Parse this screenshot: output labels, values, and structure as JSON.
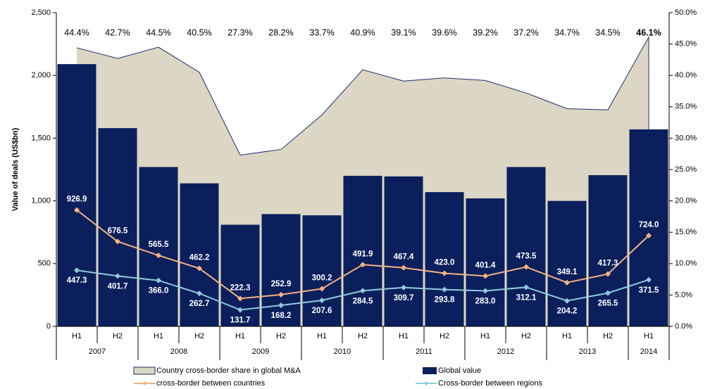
{
  "chart_data": {
    "type": "combo",
    "y_label": "Value of deals (US$bn)",
    "categories": [
      "H1",
      "H2",
      "H1",
      "H2",
      "H1",
      "H2",
      "H1",
      "H2",
      "H1",
      "H2",
      "H1",
      "H2",
      "H1",
      "H2",
      "H1"
    ],
    "groups": [
      {
        "label": "2007",
        "count": 2
      },
      {
        "label": "2008",
        "count": 2
      },
      {
        "label": "2009",
        "count": 2
      },
      {
        "label": "2010",
        "count": 2
      },
      {
        "label": "2011",
        "count": 2
      },
      {
        "label": "2012",
        "count": 2
      },
      {
        "label": "2013",
        "count": 2
      },
      {
        "label": "2014",
        "count": 1
      }
    ],
    "ylim": [
      0,
      2500
    ],
    "yticks": [
      0,
      500,
      {
        "value": 1000,
        "label": "1,000"
      },
      {
        "value": 1500,
        "label": "1,500"
      },
      {
        "value": 2000,
        "label": "2,000"
      },
      {
        "value": 2500,
        "label": "2,500"
      }
    ],
    "y2lim": [
      0,
      50
    ],
    "y2ticks": [
      {
        "value": 0,
        "label": "0.0%"
      },
      {
        "value": 5,
        "label": "5.0%"
      },
      {
        "value": 10,
        "label": "10.0%"
      },
      {
        "value": 15,
        "label": "15.0%"
      },
      {
        "value": 20,
        "label": "20.0%"
      },
      {
        "value": 25,
        "label": "25.0%"
      },
      {
        "value": 30,
        "label": "30.0%"
      },
      {
        "value": 35,
        "label": "35.0%"
      },
      {
        "value": 40,
        "label": "40.0%"
      },
      {
        "value": 45,
        "label": "45.0%"
      },
      {
        "value": 50,
        "label": "50.0%"
      }
    ],
    "series": [
      {
        "name": "Country cross-border share in global M&A",
        "type": "area",
        "axis": "y2",
        "color": "#dcd6c5",
        "line_color": "#1f2d6b",
        "values": [
          44.4,
          42.7,
          44.5,
          40.5,
          27.3,
          28.2,
          33.7,
          40.9,
          39.1,
          39.6,
          39.2,
          37.2,
          34.7,
          34.5,
          46.1
        ],
        "value_labels": [
          "44.4%",
          "42.7%",
          "44.5%",
          "40.5%",
          "27.3%",
          "28.2%",
          "33.7%",
          "40.9%",
          "39.1%",
          "39.6%",
          "39.2%",
          "37.2%",
          "34.7%",
          "34.5%",
          "46.1%"
        ]
      },
      {
        "name": "Global value",
        "type": "bar",
        "color": "#0b1f5c",
        "values": [
          2090,
          1580,
          1270,
          1140,
          810,
          895,
          885,
          1200,
          1195,
          1070,
          1020,
          1270,
          1000,
          1205,
          1570
        ]
      },
      {
        "name": "cross-border between countries",
        "type": "line",
        "color": "#f4b183",
        "values": [
          926.9,
          676.5,
          565.5,
          462.2,
          222.3,
          252.9,
          300.2,
          491.9,
          467.4,
          423.0,
          401.4,
          473.5,
          349.1,
          417.3,
          724.0
        ],
        "value_labels": [
          "926.9",
          "676.5",
          "565.5",
          "462.2",
          "222.3",
          "252.9",
          "300.2",
          "491.9",
          "467.4",
          "423.0",
          "401.4",
          "473.5",
          "349.1",
          "417.3",
          "724.0"
        ]
      },
      {
        "name": "Cross-border between regions",
        "type": "line",
        "color": "#8fcbdc",
        "values": [
          447.3,
          401.7,
          366.0,
          262.7,
          131.7,
          168.2,
          207.6,
          284.5,
          309.7,
          293.8,
          283.0,
          312.1,
          204.2,
          265.5,
          371.5
        ],
        "value_labels": [
          "447.3",
          "401.7",
          "366.0",
          "262.7",
          "131.7",
          "168.2",
          "207.6",
          "284.5",
          "309.7",
          "293.8",
          "283.0",
          "312.1",
          "204.2",
          "265.5",
          "371.5"
        ]
      }
    ]
  }
}
